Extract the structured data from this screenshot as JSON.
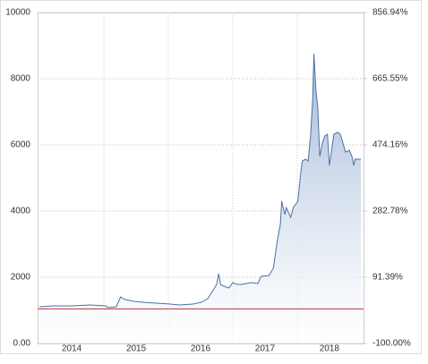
{
  "chart_data": {
    "type": "area",
    "x": [
      2013.5,
      2013.72,
      2014.0,
      2014.28,
      2014.53,
      2014.56,
      2014.69,
      2014.76,
      2014.83,
      2014.97,
      2015.11,
      2015.32,
      2015.53,
      2015.67,
      2015.88,
      2016.01,
      2016.11,
      2016.19,
      2016.25,
      2016.28,
      2016.31,
      2016.36,
      2016.44,
      2016.5,
      2016.57,
      2016.64,
      2016.78,
      2016.89,
      2016.94,
      2017.06,
      2017.13,
      2017.19,
      2017.24,
      2017.26,
      2017.31,
      2017.33,
      2017.4,
      2017.44,
      2017.51,
      2017.56,
      2017.58,
      2017.63,
      2017.67,
      2017.71,
      2017.74,
      2017.76,
      2017.79,
      2017.82,
      2017.85,
      2017.89,
      2017.93,
      2017.97,
      2018.0,
      2018.04,
      2018.07,
      2018.13,
      2018.17,
      2018.21,
      2018.25,
      2018.31,
      2018.35,
      2018.38,
      2018.4,
      2018.44,
      2018.49
    ],
    "series": [
      {
        "color": "#4a72a8",
        "values": [
          1108,
          1135,
          1135,
          1162,
          1135,
          1081,
          1108,
          1405,
          1324,
          1270,
          1243,
          1216,
          1189,
          1162,
          1189,
          1243,
          1351,
          1595,
          1784,
          2108,
          1784,
          1730,
          1676,
          1838,
          1784,
          1784,
          1838,
          1811,
          2027,
          2054,
          2270,
          3081,
          3622,
          4297,
          3892,
          4108,
          3811,
          4108,
          4297,
          5243,
          5514,
          5568,
          5514,
          6324,
          7405,
          8757,
          7676,
          7135,
          5649,
          6054,
          6270,
          6324,
          5378,
          5919,
          6324,
          6378,
          6324,
          6054,
          5784,
          5838,
          5649,
          5378,
          5568,
          5568,
          5568
        ]
      }
    ],
    "reference_line": {
      "value": 1045,
      "color": "#c0323c"
    },
    "xlim": [
      2013.47,
      2018.53
    ],
    "xticks": [
      2014,
      2015,
      2016,
      2017,
      2018
    ],
    "ylim": [
      0,
      10000
    ],
    "yticks": [
      {
        "value": 0,
        "label": "0.00"
      },
      2000,
      4000,
      6000,
      8000,
      10000
    ],
    "y2lim": [
      -100,
      856.94
    ],
    "y2ticks": [
      {
        "value": -100,
        "label": "-100.00%"
      },
      {
        "value": 91.39,
        "label": "91.39%"
      },
      {
        "value": 282.78,
        "label": "282.78%"
      },
      {
        "value": 474.16,
        "label": "474.16%"
      },
      {
        "value": 665.55,
        "label": "665.55%"
      },
      {
        "value": 856.94,
        "label": "856.94%"
      }
    ],
    "grid": true
  }
}
